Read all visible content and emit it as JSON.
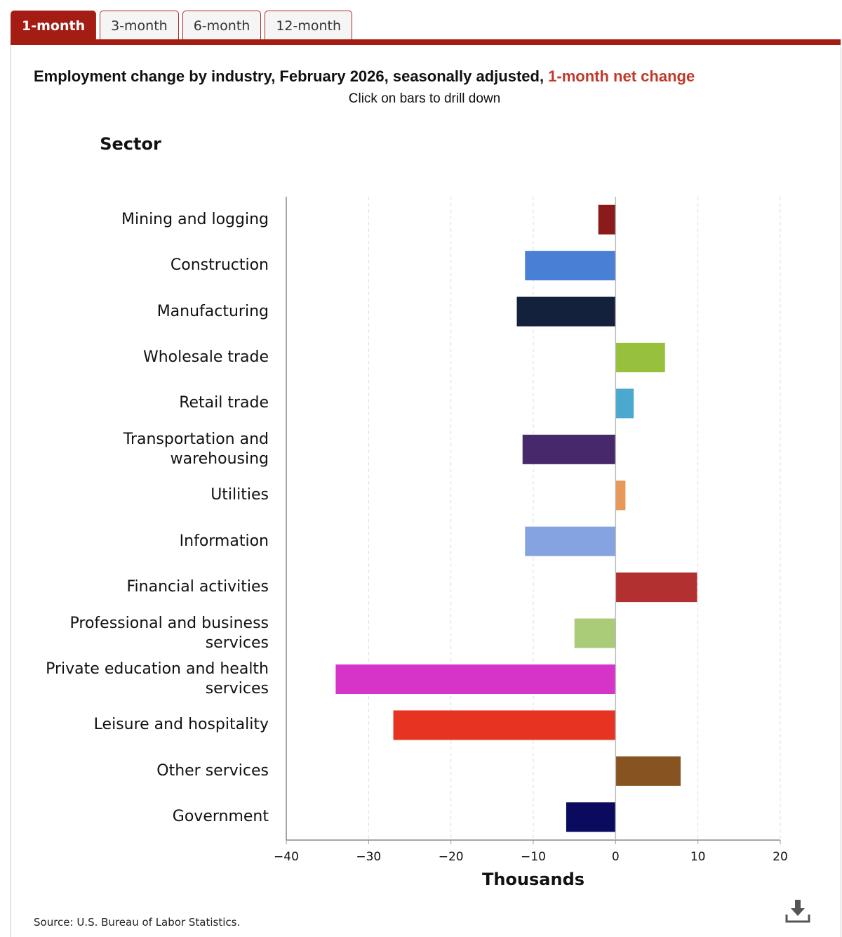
{
  "tabs": [
    "1-month",
    "3-month",
    "6-month",
    "12-month"
  ],
  "active_tab": 0,
  "source": "Source: U.S. Bureau of Labor Statistics.",
  "chart_data": {
    "type": "bar",
    "orientation": "horizontal",
    "title": "Employment change by industry, February 2026, seasonally adjusted, ",
    "title_highlight": "1-month net change",
    "subtitle": "Click on bars to drill down",
    "y_label": "Sector",
    "x_label": "Thousands",
    "categories": [
      "Mining and logging",
      "Construction",
      "Manufacturing",
      "Wholesale trade",
      "Retail trade",
      "Transportation and warehousing",
      "Utilities",
      "Information",
      "Financial activities",
      "Professional and business services",
      "Private education and health services",
      "Leisure and hospitality",
      "Other services",
      "Government"
    ],
    "values": [
      -2.1,
      -11,
      -12,
      6,
      2.2,
      -11.3,
      1.2,
      -11,
      9.9,
      -5,
      -34,
      -27,
      7.9,
      -6
    ],
    "colors": [
      "#8b1a1a",
      "#4a7fd6",
      "#14213d",
      "#97c03c",
      "#4ba9d0",
      "#47296b",
      "#e8995a",
      "#84a3e0",
      "#b33030",
      "#aacb78",
      "#d633c9",
      "#e63322",
      "#875320",
      "#0a0a5e"
    ],
    "xlim": [
      -40,
      20
    ],
    "xticks": [
      {
        "value": -40,
        "label": "−40"
      },
      {
        "value": -30,
        "label": "−30"
      },
      {
        "value": -20,
        "label": "−20"
      },
      {
        "value": -10,
        "label": "−10"
      },
      0,
      10,
      20
    ],
    "grid": true
  }
}
